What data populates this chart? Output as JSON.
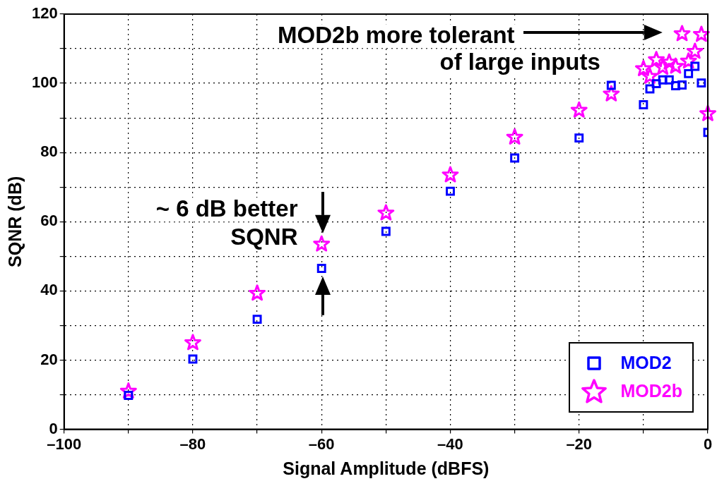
{
  "chart_data": {
    "type": "scatter",
    "xlabel": "Signal Amplitude (dBFS)",
    "ylabel": "SQNR (dB)",
    "xlim": [
      -100,
      0
    ],
    "ylim": [
      0,
      120
    ],
    "xticks": [
      {
        "value": -100,
        "label": "–100"
      },
      {
        "value": -90,
        "label": null
      },
      {
        "value": -80,
        "label": "–80"
      },
      {
        "value": -70,
        "label": null
      },
      {
        "value": -60,
        "label": "–60"
      },
      {
        "value": -50,
        "label": null
      },
      {
        "value": -40,
        "label": "–40"
      },
      {
        "value": -30,
        "label": null
      },
      {
        "value": -20,
        "label": "–20"
      },
      {
        "value": -10,
        "label": null
      },
      0
    ],
    "yticks": [
      0,
      {
        "value": 10,
        "label": null
      },
      20,
      {
        "value": 30,
        "label": null
      },
      40,
      {
        "value": 50,
        "label": null
      },
      60,
      {
        "value": 70,
        "label": null
      },
      80,
      {
        "value": 90,
        "label": null
      },
      100,
      {
        "value": 110,
        "label": null
      },
      120
    ],
    "grid": true,
    "legend": "bottom right",
    "series": [
      {
        "name": "MOD2",
        "color": "#0000ff",
        "marker": "square",
        "x": [
          -90,
          -80,
          -70,
          -60,
          -50,
          -40,
          -30,
          -20,
          -15,
          -10,
          -9,
          -8,
          -7,
          -6,
          -5,
          -4,
          -3,
          -2,
          -1,
          0
        ],
        "values": [
          9.8,
          20.3,
          31.8,
          46.5,
          57.2,
          68.8,
          78.4,
          84.2,
          99.4,
          93.8,
          98.4,
          99.9,
          101,
          101,
          99.3,
          99.5,
          102.8,
          104.9,
          100.1,
          85.8
        ]
      },
      {
        "name": "MOD2b",
        "color": "#ff00ff",
        "marker": "star",
        "x": [
          -90,
          -80,
          -70,
          -60,
          -50,
          -40,
          -30,
          -20,
          -15,
          -10,
          -9,
          -8,
          -7,
          -6,
          -5,
          -4,
          -3,
          -2,
          -1,
          0
        ],
        "values": [
          11,
          25,
          39.3,
          53.5,
          62.5,
          73.5,
          84.4,
          92.2,
          96.9,
          104.2,
          102,
          106.8,
          104.6,
          106.1,
          104.9,
          114.3,
          106.4,
          109.2,
          114.1,
          91.2
        ]
      }
    ],
    "annotations": [
      "~ 6 dB better\nSQNR",
      "MOD2b more tolerant\nof large inputs"
    ]
  }
}
